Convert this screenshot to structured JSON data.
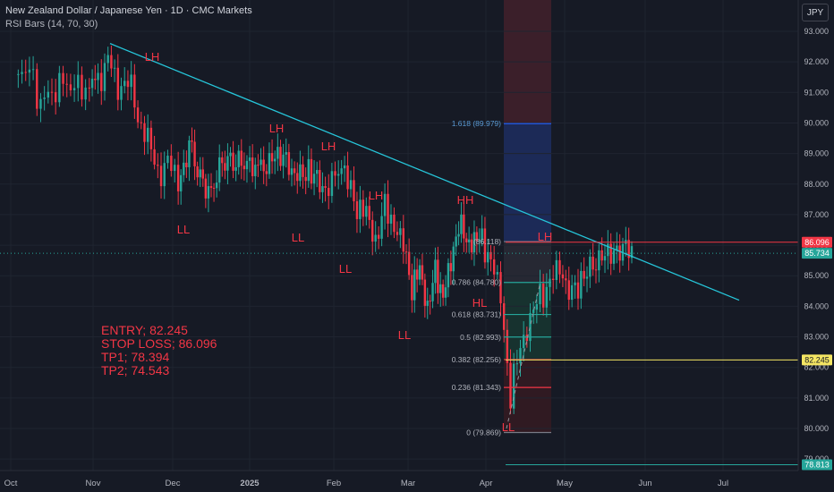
{
  "header": {
    "title": "New Zealand Dollar / Japanese Yen · 1D · CMC Markets",
    "indicator": "RSI Bars (14, 70, 30)"
  },
  "currency": "JPY",
  "trade_notes": [
    "ENTRY; 82.245",
    "STOP LOSS; 86.096",
    "TP1; 78.394",
    "TP2; 74.543"
  ],
  "colors": {
    "background": "#161a25",
    "up": "#26a69a",
    "down": "#f23645",
    "trendline": "#26c6da",
    "fib": "#2962ff",
    "entry": "#f5e663",
    "stop": "#f23645",
    "tp": "#26a69a"
  },
  "chart_data": {
    "type": "candlestick",
    "y_axis": {
      "range": [
        77.8,
        93.4
      ],
      "ticks": [
        "93.000",
        "92.000",
        "91.000",
        "90.000",
        "89.000",
        "88.000",
        "87.000",
        "86.000",
        "85.000",
        "84.000",
        "83.000",
        "82.000",
        "81.000",
        "80.000",
        "79.000"
      ]
    },
    "x_axis": {
      "ticks": [
        "Oct",
        "Nov",
        "Dec",
        "2025",
        "Feb",
        "Mar",
        "Apr",
        "May",
        "Jun",
        "Jul"
      ]
    },
    "price_labels": [
      {
        "value": 86.096,
        "label": "86.096",
        "color": "#f23645"
      },
      {
        "value": 85.734,
        "label": "85.734",
        "color": "#26a69a"
      },
      {
        "value": 82.245,
        "label": "82.245",
        "color": "#f5e663"
      },
      {
        "value": 78.813,
        "label": "78.813",
        "color": "#26a69a"
      }
    ],
    "price_path": [
      [
        "Oct",
        91.6
      ],
      [
        "Oct",
        91.2
      ],
      [
        "Oct",
        91.9
      ],
      [
        "Oct",
        90.6
      ],
      [
        "Oct",
        91.3
      ],
      [
        "Oct",
        90.9
      ],
      [
        "Oct",
        91.5
      ],
      [
        "Oct",
        90.8
      ],
      [
        "Oct",
        91.2
      ],
      [
        "Oct",
        90.9
      ],
      [
        "Oct",
        91.6
      ],
      [
        "Nov",
        91.3
      ],
      [
        "Nov",
        92.1
      ],
      [
        "Nov",
        91.0
      ],
      [
        "Nov",
        91.5
      ],
      [
        "Nov",
        90.2
      ],
      [
        "Nov",
        89.6
      ],
      [
        "Nov",
        88.3
      ],
      [
        "Nov",
        88.7
      ],
      [
        "Dec",
        88.0
      ],
      [
        "Dec",
        89.1
      ],
      [
        "Dec",
        88.3
      ],
      [
        "Dec",
        87.5
      ],
      [
        "Dec",
        89.0
      ],
      [
        "Dec",
        88.6
      ],
      [
        "Dec",
        88.9
      ],
      [
        "2025",
        88.2
      ],
      [
        "2025",
        89.2
      ],
      [
        "2025",
        88.3
      ],
      [
        "2025",
        88.6
      ],
      [
        "2025",
        87.5
      ],
      [
        "Feb",
        88.8
      ],
      [
        "Feb",
        88.0
      ],
      [
        "Feb",
        87.3
      ],
      [
        "Feb",
        87.1
      ],
      [
        "Feb",
        86.2
      ],
      [
        "Feb",
        87.2
      ],
      [
        "Feb",
        86.6
      ],
      [
        "Feb",
        85.9
      ],
      [
        "Mar",
        84.7
      ],
      [
        "Mar",
        85.2
      ],
      [
        "Mar",
        84.1
      ],
      [
        "Mar",
        85.0
      ],
      [
        "Mar",
        84.4
      ],
      [
        "Mar",
        85.2
      ],
      [
        "Mar",
        86.9
      ],
      [
        "Mar",
        86.0
      ],
      [
        "Mar",
        86.4
      ],
      [
        "Mar",
        86.0
      ],
      [
        "Apr",
        85.6
      ],
      [
        "Apr",
        84.1
      ],
      [
        "Apr",
        81.2
      ],
      [
        "Apr",
        82.6
      ],
      [
        "Apr",
        83.8
      ],
      [
        "Apr",
        84.2
      ],
      [
        "Apr",
        84.9
      ],
      [
        "Apr",
        85.0
      ],
      [
        "May",
        84.5
      ],
      [
        "May",
        86.0
      ],
      [
        "May",
        85.7
      ]
    ],
    "trendline": [
      {
        "x": "Nov",
        "y": 92.6
      },
      {
        "x": "Jul",
        "y": 84.2
      }
    ],
    "fibonacci": [
      {
        "level": "1.618",
        "value": 89.979,
        "label": "1.618 (89.979)"
      },
      {
        "level": "1",
        "value": 86.118,
        "label": "(86.118)"
      },
      {
        "level": "0.786",
        "value": 84.78,
        "label": "0.786 (84.780)"
      },
      {
        "level": "0.618",
        "value": 83.731,
        "label": "0.618 (83.731)"
      },
      {
        "level": "0.5",
        "value": 82.993,
        "label": "0.5 (82.993)"
      },
      {
        "level": "0.382",
        "value": 82.256,
        "label": "0.382 (82.256)"
      },
      {
        "level": "0.236",
        "value": 81.343,
        "label": "0.236 (81.343)"
      },
      {
        "level": "0",
        "value": 79.869,
        "label": "0 (79.869)"
      }
    ],
    "annotations": [
      {
        "text": "LH",
        "price": 92.1
      },
      {
        "text": "LH",
        "price": 89.8
      },
      {
        "text": "LH",
        "price": 89.2
      },
      {
        "text": "LH",
        "price": 87.6
      },
      {
        "text": "HH",
        "price": 87.5
      },
      {
        "text": "LH",
        "price": 86.3
      },
      {
        "text": "LL",
        "price": 86.7
      },
      {
        "text": "LL",
        "price": 86.5
      },
      {
        "text": "LL",
        "price": 85.3
      },
      {
        "text": "LL",
        "price": 83.8
      },
      {
        "text": "HL",
        "price": 84.5
      },
      {
        "text": "LL",
        "price": 79.8
      }
    ]
  }
}
